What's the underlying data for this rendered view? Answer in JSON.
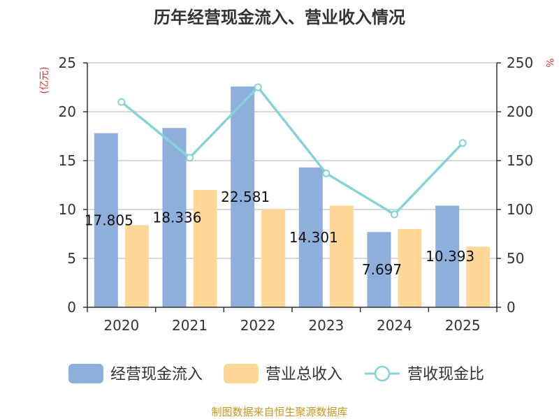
{
  "chart_data": {
    "type": "bar",
    "title": "历年经营现金流入、营业收入情况",
    "categories": [
      "2020",
      "2021",
      "2022",
      "2023",
      "2024",
      "2025"
    ],
    "y_left": {
      "unit": "(亿元)",
      "range": [
        0,
        25
      ],
      "ticks": [
        0,
        5,
        10,
        15,
        20,
        25
      ]
    },
    "y_right": {
      "unit": "%",
      "range": [
        0,
        250
      ],
      "ticks": [
        0,
        50,
        100,
        150,
        200,
        250
      ]
    },
    "series": [
      {
        "name": "经营现金流入",
        "type": "bar",
        "axis": "left",
        "color": "#8eaedb",
        "values": [
          17.805,
          18.336,
          22.581,
          14.301,
          7.697,
          10.393
        ],
        "labels": [
          "17.805",
          "18.336",
          "22.581",
          "14.301",
          "7.697",
          "10.393"
        ]
      },
      {
        "name": "营业总收入",
        "type": "bar",
        "axis": "left",
        "color": "#ffd898",
        "values": [
          8.4,
          12.0,
          10.0,
          10.4,
          8.0,
          6.2
        ]
      },
      {
        "name": "营收现金比",
        "type": "line",
        "axis": "right",
        "color": "#86d3d6",
        "values": [
          210,
          153,
          225,
          137,
          95,
          168
        ]
      }
    ],
    "grid": true,
    "legend_position": "bottom",
    "source": "制图数据来自恒生聚源数据库"
  }
}
